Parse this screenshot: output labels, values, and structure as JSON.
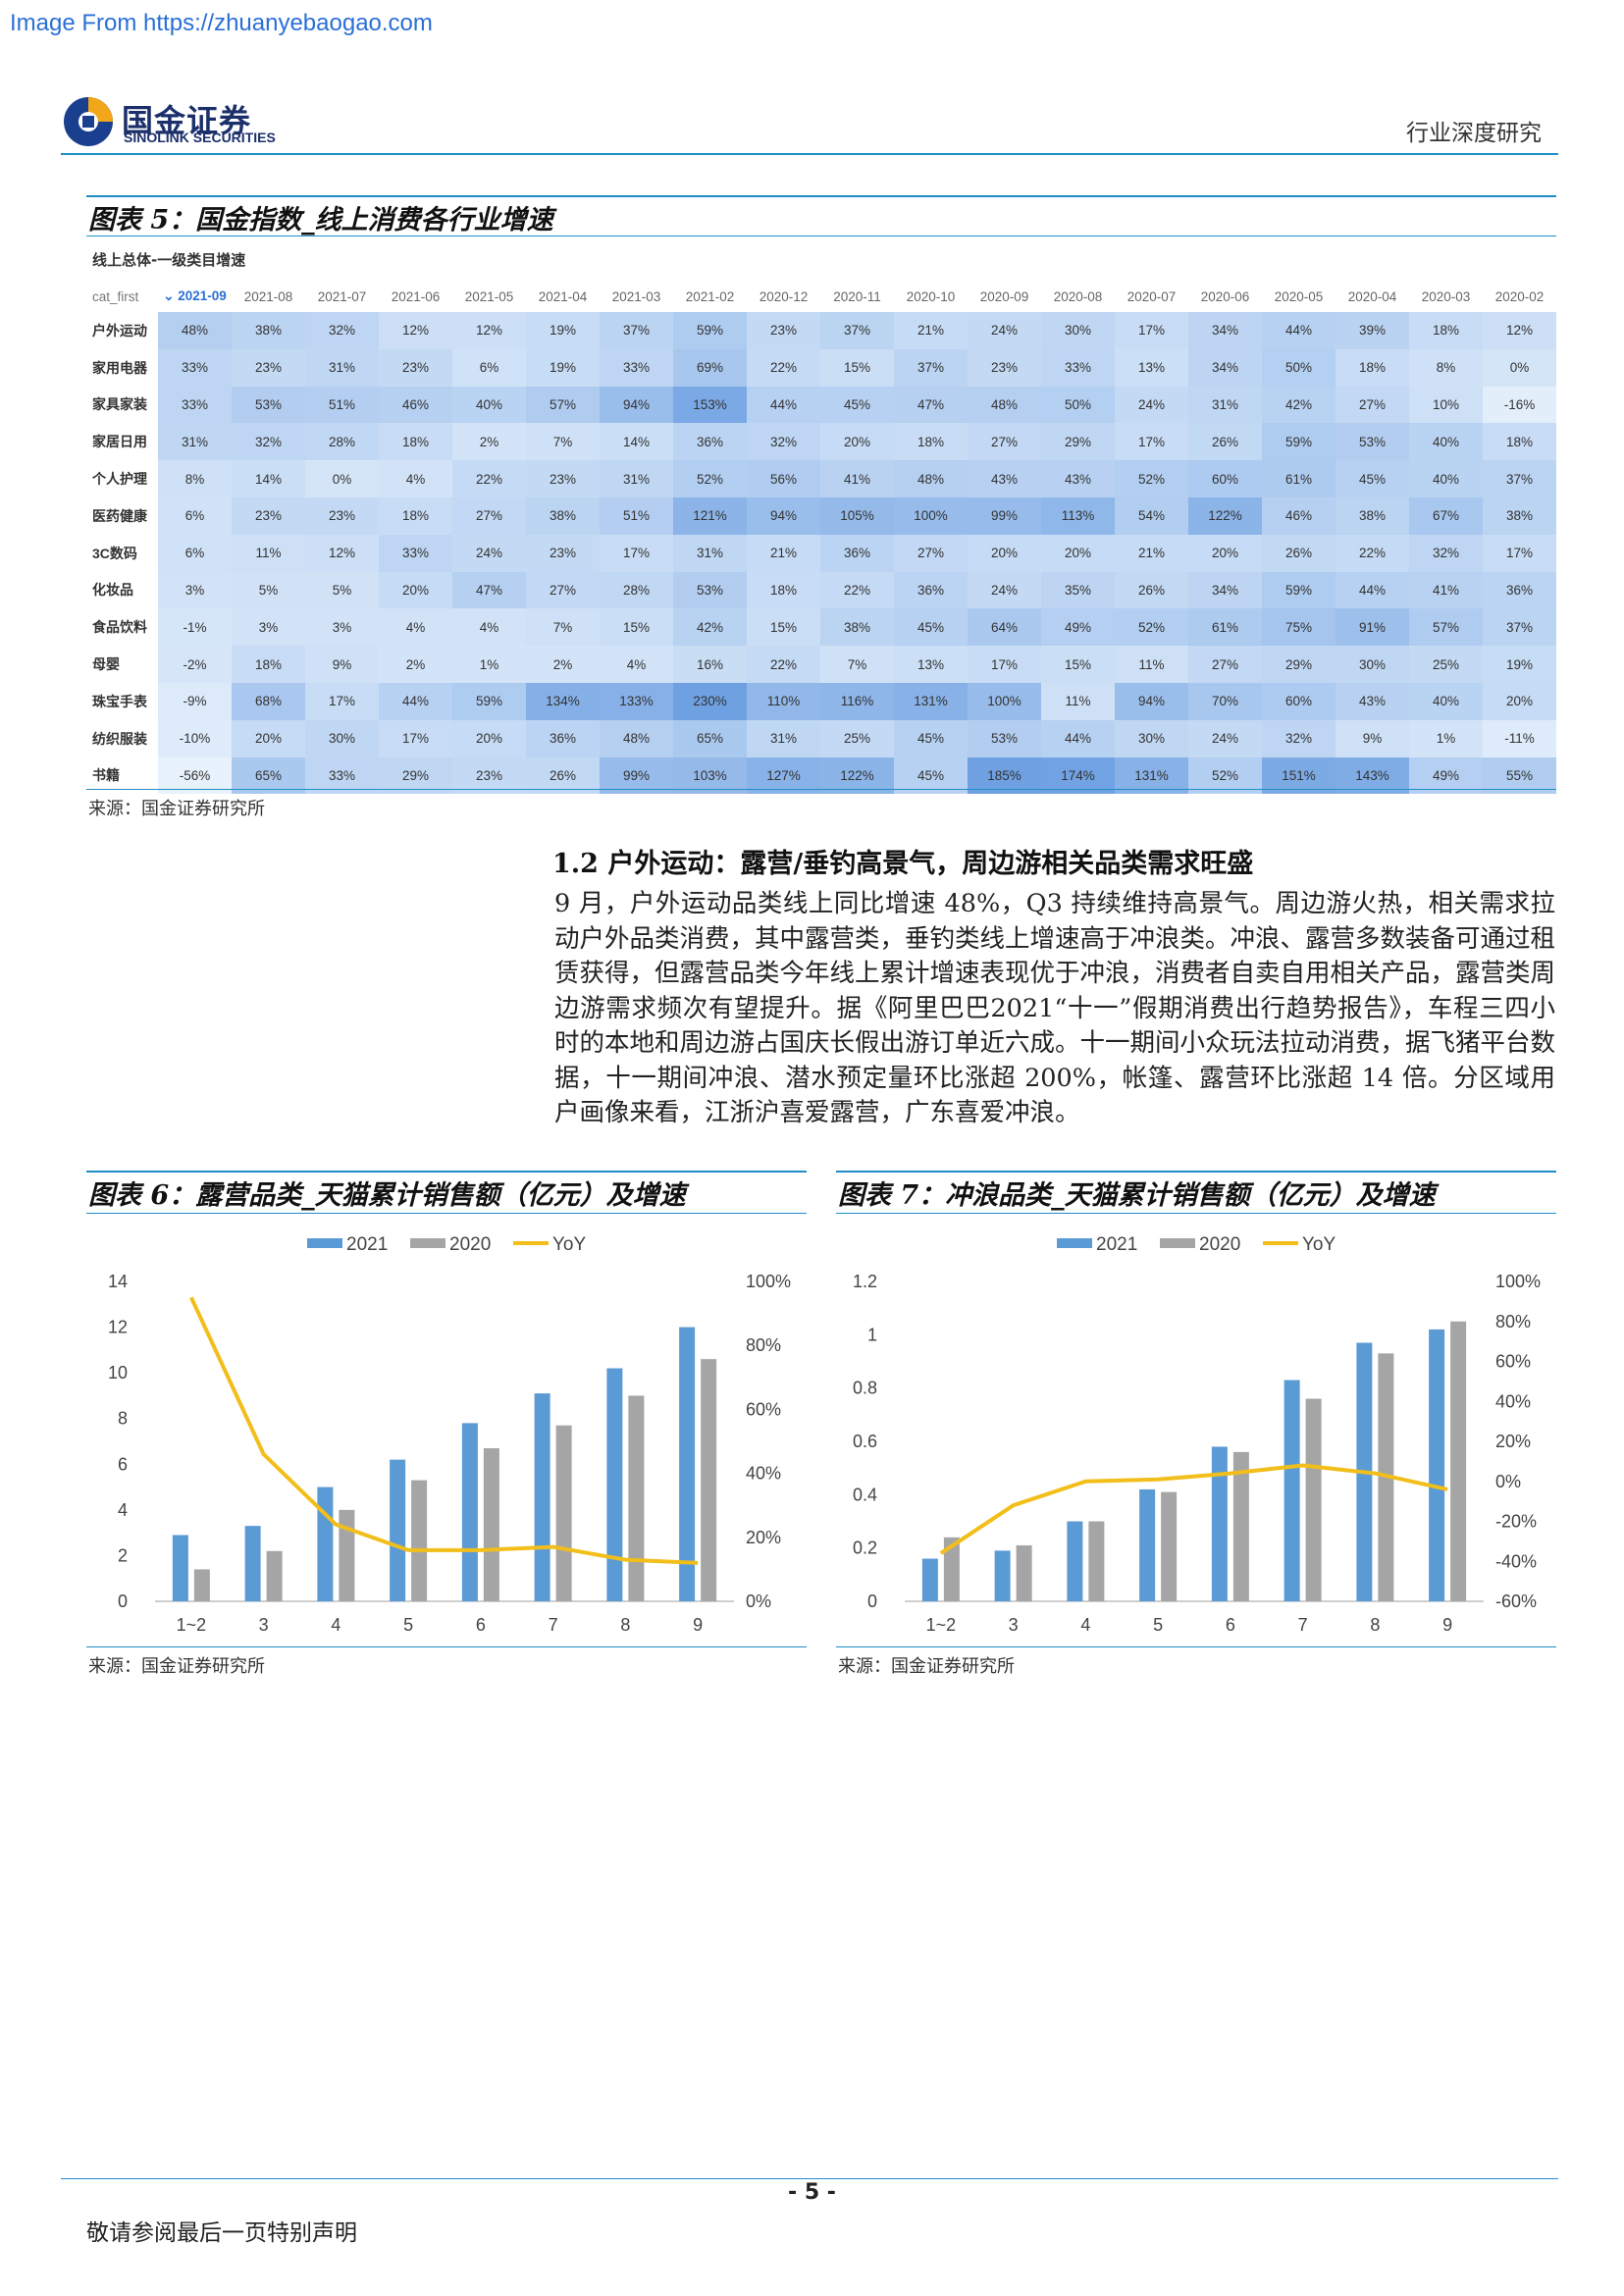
{
  "watermark": "Image From https://zhuanyebaogao.com",
  "header": {
    "logo_cn": "国金证券",
    "logo_en": "SINOLINK SECURITIES",
    "doc_type": "行业深度研究"
  },
  "figure5": {
    "title": "图表 5：国金指数_线上消费各行业增速",
    "table_caption": "线上总体-一级类目增速",
    "row_header_label": "cat_first",
    "sort_marker": "⌄",
    "columns": [
      "2021-09",
      "2021-08",
      "2021-07",
      "2021-06",
      "2021-05",
      "2021-04",
      "2021-03",
      "2021-02",
      "2020-12",
      "2020-11",
      "2020-10",
      "2020-09",
      "2020-08",
      "2020-07",
      "2020-06",
      "2020-05",
      "2020-04",
      "2020-03",
      "2020-02"
    ],
    "rows": [
      {
        "name": "户外运动",
        "values": [
          48,
          38,
          32,
          12,
          12,
          19,
          37,
          59,
          23,
          37,
          21,
          24,
          30,
          17,
          34,
          44,
          39,
          18,
          12
        ]
      },
      {
        "name": "家用电器",
        "values": [
          33,
          23,
          31,
          23,
          6,
          19,
          33,
          69,
          22,
          15,
          37,
          23,
          33,
          13,
          34,
          50,
          18,
          8,
          0
        ]
      },
      {
        "name": "家具家装",
        "values": [
          33,
          53,
          51,
          46,
          40,
          57,
          94,
          153,
          44,
          45,
          47,
          48,
          50,
          24,
          31,
          42,
          27,
          10,
          -16
        ]
      },
      {
        "name": "家居日用",
        "values": [
          31,
          32,
          28,
          18,
          2,
          7,
          14,
          36,
          32,
          20,
          18,
          27,
          29,
          17,
          26,
          59,
          53,
          40,
          18
        ]
      },
      {
        "name": "个人护理",
        "values": [
          8,
          14,
          0,
          4,
          22,
          23,
          31,
          52,
          56,
          41,
          48,
          43,
          43,
          52,
          60,
          61,
          45,
          40,
          37
        ]
      },
      {
        "name": "医药健康",
        "values": [
          6,
          23,
          23,
          18,
          27,
          38,
          51,
          121,
          94,
          105,
          100,
          99,
          113,
          54,
          122,
          46,
          38,
          67,
          38
        ]
      },
      {
        "name": "3C数码",
        "values": [
          6,
          11,
          12,
          33,
          24,
          23,
          17,
          31,
          21,
          36,
          27,
          20,
          20,
          21,
          20,
          26,
          22,
          32,
          17
        ]
      },
      {
        "name": "化妆品",
        "values": [
          3,
          5,
          5,
          20,
          47,
          27,
          28,
          53,
          18,
          22,
          36,
          24,
          35,
          26,
          34,
          59,
          44,
          41,
          36
        ]
      },
      {
        "name": "食品饮料",
        "values": [
          -1,
          3,
          3,
          4,
          4,
          7,
          15,
          42,
          15,
          38,
          45,
          64,
          49,
          52,
          61,
          75,
          91,
          57,
          37
        ]
      },
      {
        "name": "母婴",
        "values": [
          -2,
          18,
          9,
          2,
          1,
          2,
          4,
          16,
          22,
          7,
          13,
          17,
          15,
          11,
          27,
          29,
          30,
          25,
          19
        ]
      },
      {
        "name": "珠宝手表",
        "values": [
          -9,
          68,
          17,
          44,
          59,
          134,
          133,
          230,
          110,
          116,
          131,
          100,
          11,
          94,
          70,
          60,
          43,
          40,
          20
        ]
      },
      {
        "name": "纺织服装",
        "values": [
          -10,
          20,
          30,
          17,
          20,
          36,
          48,
          65,
          31,
          25,
          45,
          53,
          44,
          30,
          24,
          32,
          9,
          1,
          -11
        ]
      },
      {
        "name": "书籍",
        "values": [
          -56,
          65,
          33,
          29,
          23,
          26,
          99,
          103,
          127,
          122,
          45,
          185,
          174,
          131,
          52,
          151,
          143,
          49,
          55
        ]
      }
    ],
    "source": "来源：国金证券研究所"
  },
  "section": {
    "title": "1.2 户外运动：露营/垂钓高景气，周边游相关品类需求旺盛",
    "body": "9 月，户外运动品类线上同比增速 48%，Q3 持续维持高景气。周边游火热，相关需求拉动户外品类消费，其中露营类，垂钓类线上增速高于冲浪类。冲浪、露营多数装备可通过租赁获得，但露营品类今年线上累计增速表现优于冲浪，消费者自卖自用相关产品，露营类周边游需求频次有望提升。据《阿里巴巴2021“十一”假期消费出行趋势报告》，车程三四小时的本地和周边游占国庆长假出游订单近六成。十一期间小众玩法拉动消费，据飞猪平台数据，十一期间冲浪、潜水预定量环比涨超 200%，帐篷、露营环比涨超 14 倍。分区域用户画像来看，江浙沪喜爱露营，广东喜爱冲浪。"
  },
  "chart_data": [
    {
      "type": "bar",
      "title": "图表 6：露营品类_天猫累计销售额（亿元）及增速",
      "categories": [
        "1~2",
        "3",
        "4",
        "5",
        "6",
        "7",
        "8",
        "9"
      ],
      "series": [
        {
          "name": "2021",
          "type": "bar",
          "axis": "left",
          "color": "#5b9bd5",
          "values": [
            2.9,
            3.3,
            5.0,
            6.2,
            7.8,
            9.1,
            10.2,
            12.0
          ]
        },
        {
          "name": "2020",
          "type": "bar",
          "axis": "left",
          "color": "#a5a5a5",
          "values": [
            1.4,
            2.2,
            4.0,
            5.3,
            6.7,
            7.7,
            9.0,
            10.6
          ]
        },
        {
          "name": "YoY",
          "type": "line",
          "axis": "right",
          "color": "#f2be1a",
          "values": [
            95,
            46,
            24,
            16,
            16,
            17,
            13,
            12
          ]
        }
      ],
      "yleft": {
        "min": 0,
        "max": 14,
        "ticks": [
          0,
          2,
          4,
          6,
          8,
          10,
          12,
          14
        ]
      },
      "yright": {
        "min": 0,
        "max": 100,
        "ticks": [
          0,
          20,
          40,
          60,
          80,
          100
        ],
        "tick_labels": [
          "0%",
          "20%",
          "40%",
          "60%",
          "80%",
          "100%"
        ]
      },
      "legend": "top",
      "source": "来源：国金证券研究所"
    },
    {
      "type": "bar",
      "title": "图表 7：冲浪品类_天猫累计销售额（亿元）及增速",
      "categories": [
        "1~2",
        "3",
        "4",
        "5",
        "6",
        "7",
        "8",
        "9"
      ],
      "series": [
        {
          "name": "2021",
          "type": "bar",
          "axis": "left",
          "color": "#5b9bd5",
          "values": [
            0.16,
            0.19,
            0.3,
            0.42,
            0.58,
            0.83,
            0.97,
            1.02
          ]
        },
        {
          "name": "2020",
          "type": "bar",
          "axis": "left",
          "color": "#a5a5a5",
          "values": [
            0.24,
            0.21,
            0.3,
            0.41,
            0.56,
            0.76,
            0.93,
            1.05
          ]
        },
        {
          "name": "YoY",
          "type": "line",
          "axis": "right",
          "color": "#f2be1a",
          "values": [
            -36,
            -12,
            0,
            1,
            4,
            8,
            4,
            -4
          ]
        }
      ],
      "yleft": {
        "min": 0,
        "max": 1.2,
        "ticks": [
          0,
          0.2,
          0.4,
          0.6,
          0.8,
          1,
          1.2
        ],
        "tick_labels": [
          "0",
          "0.2",
          "0.4",
          "0.6",
          "0.8",
          "1",
          "1.2"
        ]
      },
      "yright": {
        "min": -60,
        "max": 100,
        "ticks": [
          -60,
          -40,
          -20,
          0,
          20,
          40,
          60,
          80,
          100
        ],
        "tick_labels": [
          "-60%",
          "-40%",
          "-20%",
          "0%",
          "20%",
          "40%",
          "60%",
          "80%",
          "100%"
        ]
      },
      "legend": "top",
      "source": "来源：国金证券研究所"
    }
  ],
  "footer": {
    "page": "- 5 -",
    "note": "敬请参阅最后一页特别声明"
  }
}
